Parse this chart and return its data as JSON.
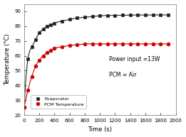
{
  "title": "",
  "xlabel": "Time (s)",
  "ylabel": "Temperature (°C)",
  "annotation1": "Power input =13W",
  "annotation2": "PCM = Air",
  "xlim": [
    0,
    2000
  ],
  "ylim": [
    20,
    95
  ],
  "xticks": [
    0,
    200,
    400,
    600,
    800,
    1000,
    1200,
    1400,
    1600,
    1800,
    2000
  ],
  "yticks": [
    20,
    30,
    40,
    50,
    60,
    70,
    80,
    90
  ],
  "evaporator_x": [
    0,
    50,
    100,
    150,
    200,
    250,
    300,
    350,
    400,
    500,
    600,
    700,
    800,
    900,
    1000,
    1100,
    1200,
    1300,
    1400,
    1500,
    1600,
    1700,
    1800,
    1900
  ],
  "evaporator_y": [
    25.5,
    58,
    66,
    71,
    75.5,
    78,
    80,
    81,
    82,
    83.5,
    84.5,
    85.5,
    86,
    86.5,
    87,
    87.2,
    87.3,
    87.4,
    87.5,
    87.5,
    87.5,
    87.6,
    87.6,
    87.6
  ],
  "pcm_x": [
    0,
    50,
    100,
    150,
    200,
    250,
    300,
    350,
    400,
    500,
    600,
    700,
    800,
    900,
    1000,
    1100,
    1200,
    1300,
    1400,
    1500,
    1600,
    1700,
    1800,
    1900
  ],
  "pcm_y": [
    25.5,
    37,
    46,
    53,
    57,
    60,
    62,
    63.5,
    65,
    66,
    67,
    67.5,
    68,
    68,
    68,
    68,
    68,
    68,
    68,
    68,
    68,
    68,
    68,
    68
  ],
  "evaporator_color": "#222222",
  "pcm_color": "#cc0000",
  "bg_color": "#ffffff",
  "legend_evaporator": "Evaporator",
  "legend_pcm": "PCM Temperature",
  "marker_evaporator": "s",
  "marker_pcm": "o"
}
